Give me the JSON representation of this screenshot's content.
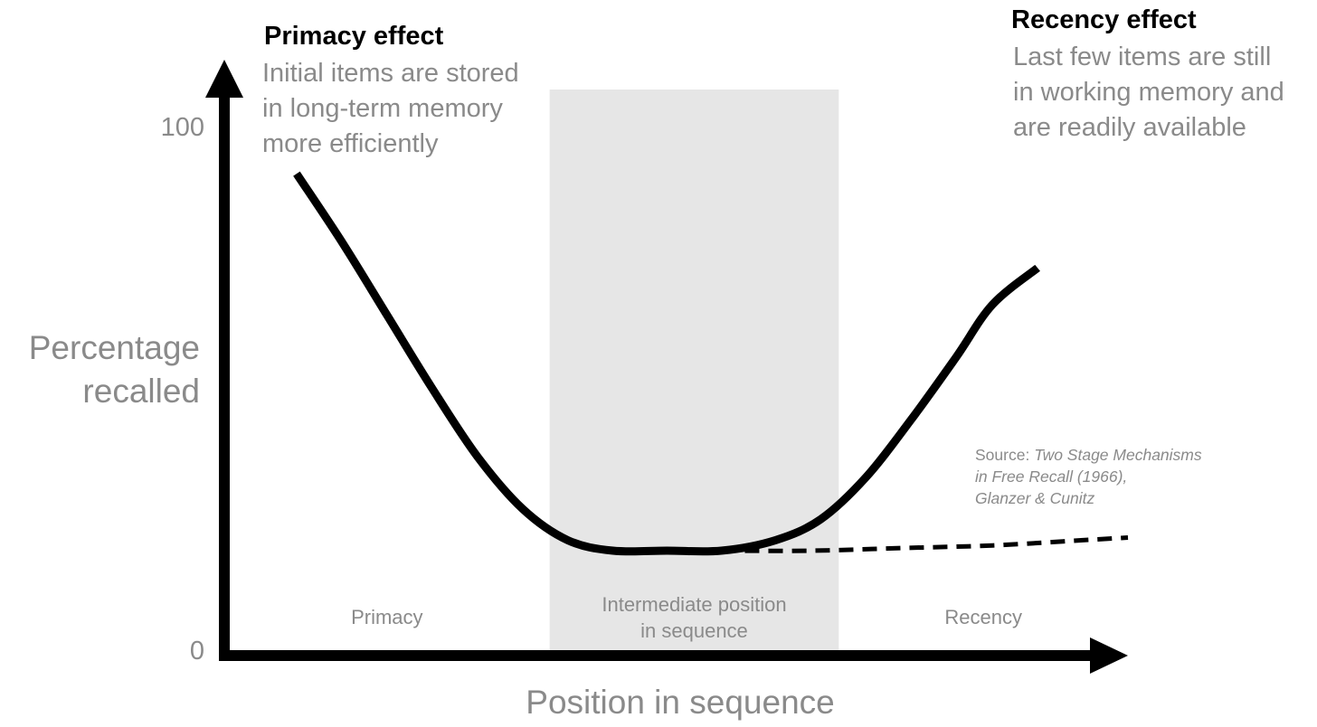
{
  "chart_data": {
    "type": "line",
    "xlabel": "Position in sequence",
    "ylabel_lines": [
      "Percentage",
      "recalled"
    ],
    "y_ticks": [
      {
        "label": "100",
        "value": 100
      },
      {
        "label": "0",
        "value": 0
      }
    ],
    "ylim": [
      0,
      100
    ],
    "xlim": [
      0,
      1
    ],
    "grid": false,
    "regions": [
      {
        "label_lines": [
          "Primacy"
        ],
        "x_start": 0.0,
        "x_end": 0.36,
        "shaded": false
      },
      {
        "label_lines": [
          "Intermediate position",
          "in sequence"
        ],
        "x_start": 0.36,
        "x_end": 0.68,
        "shaded": true
      },
      {
        "label_lines": [
          "Recency"
        ],
        "x_start": 0.68,
        "x_end": 1.0,
        "shaded": false
      }
    ],
    "series": [
      {
        "style": "solid",
        "x": [
          0.08,
          0.13,
          0.18,
          0.23,
          0.28,
          0.33,
          0.38,
          0.43,
          0.49,
          0.55,
          0.61,
          0.66,
          0.71,
          0.76,
          0.81,
          0.85,
          0.9
        ],
        "y": [
          91,
          78,
          64,
          50,
          37,
          27,
          21,
          19,
          19,
          19,
          21,
          25,
          33,
          44,
          56,
          66,
          73
        ]
      },
      {
        "style": "dashed",
        "x": [
          0.55,
          0.65,
          0.75,
          0.85,
          0.95,
          1.0
        ],
        "y": [
          19,
          19,
          19.5,
          20,
          21,
          21.5
        ]
      }
    ],
    "annotations": [
      {
        "id": "primacy",
        "heading": "Primacy effect",
        "lines": [
          "Initial items are stored",
          "in long-term memory",
          "more efficiently"
        ]
      },
      {
        "id": "recency",
        "heading": "Recency effect",
        "lines": [
          "Last few items are still",
          "in working memory and",
          "are readily available"
        ]
      }
    ],
    "source": {
      "prefix": "Source: ",
      "lines": [
        "Two Stage Mechanisms",
        "in Free Recall (1966),",
        "Glanzer & Cunitz"
      ]
    }
  },
  "colors": {
    "axis": "#000000",
    "curve": "#000000",
    "shade": "#e6e6e6",
    "muted_text": "#8a8a8a",
    "heading_text": "#000000"
  }
}
